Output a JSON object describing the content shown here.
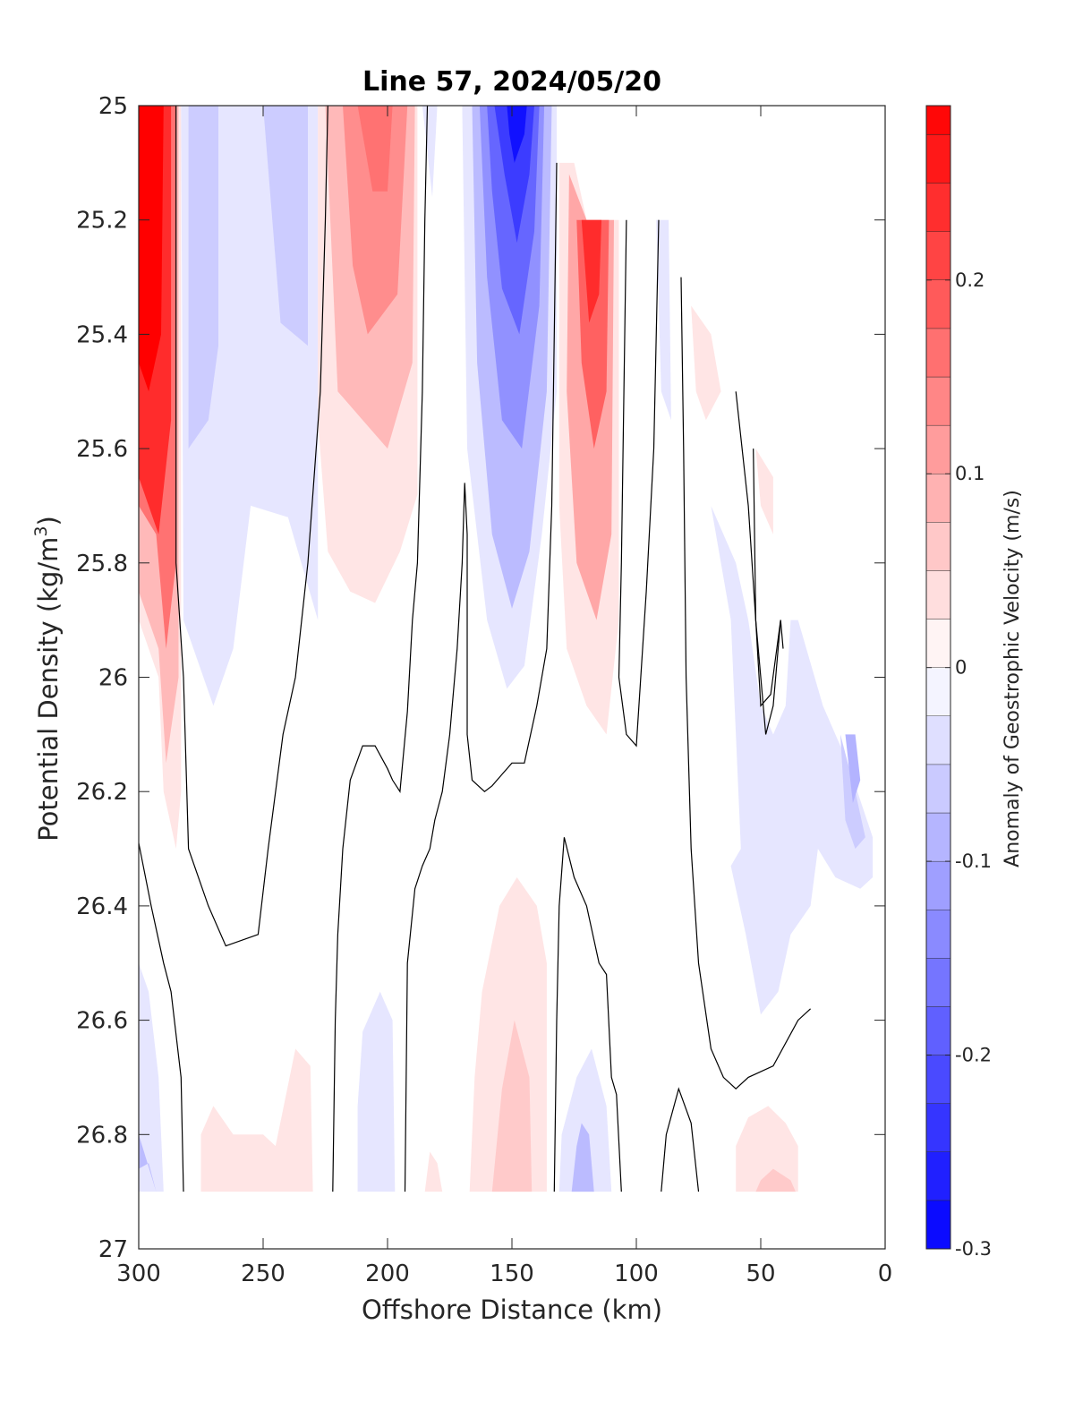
{
  "chart_data": {
    "type": "contourf",
    "title": "Line 57, 2024/05/20",
    "xlabel": "Offshore Distance (km)",
    "ylabel_main": "Potential Density (kg/m",
    "ylabel_sup": "3",
    "ylabel_close": ")",
    "colorbar_label": "Anomaly of Geostrophic Velocity (m/s)",
    "xlim": [
      300,
      0
    ],
    "ylim": [
      25,
      27
    ],
    "x_ticks": [
      "300",
      "250",
      "200",
      "150",
      "100",
      "50",
      "0"
    ],
    "x_tick_values": [
      300,
      250,
      200,
      150,
      100,
      50,
      0
    ],
    "y_ticks": [
      "25",
      "25.2",
      "25.4",
      "25.6",
      "25.8",
      "26",
      "26.2",
      "26.4",
      "26.6",
      "26.8",
      "27"
    ],
    "y_tick_values": [
      25,
      25.2,
      25.4,
      25.6,
      25.8,
      26,
      26.2,
      26.4,
      26.6,
      26.8,
      27
    ],
    "clim": [
      -0.3,
      0.29
    ],
    "colorbar_levels": [
      -0.3,
      -0.275,
      -0.25,
      -0.225,
      -0.2,
      -0.175,
      -0.15,
      -0.125,
      -0.1,
      -0.075,
      -0.05,
      -0.025,
      0,
      0.025,
      0.05,
      0.075,
      0.1,
      0.125,
      0.15,
      0.175,
      0.2,
      0.225,
      0.25,
      0.275,
      0.29
    ],
    "colorbar_ticks": [
      "0.2",
      "0.1",
      "0",
      "-0.1",
      "-0.2",
      "-0.3"
    ],
    "colorbar_tick_values": [
      0.2,
      0.1,
      0,
      -0.1,
      -0.2,
      -0.3
    ],
    "colormap": {
      "negative": "#0000ff",
      "zero": "#ffffff",
      "positive": "#ff0000"
    },
    "zero_contour_color": "#000000",
    "grid": false,
    "features": [
      {
        "name": "nearshore-jet-300km",
        "type": "positive",
        "x_range": [
          300,
          283
        ],
        "sigma_range": [
          25,
          26.3
        ],
        "peak_value": 0.29
      },
      {
        "name": "negative-band-280km",
        "type": "negative",
        "x_range": [
          283,
          228
        ],
        "sigma_range": [
          25,
          26.05
        ],
        "peak_value": -0.07
      },
      {
        "name": "positive-band-205km",
        "type": "positive",
        "x_range": [
          228,
          188
        ],
        "sigma_range": [
          25,
          25.87
        ],
        "peak_value": 0.16
      },
      {
        "name": "negative-core-150km",
        "type": "negative",
        "x_range": [
          170,
          130
        ],
        "sigma_range": [
          25,
          26.02
        ],
        "peak_value": -0.28
      },
      {
        "name": "positive-band-115km",
        "type": "positive",
        "x_range": [
          131,
          107
        ],
        "sigma_range": [
          25.2,
          26.1
        ],
        "peak_value": 0.24
      },
      {
        "name": "deep-positive-150km",
        "type": "positive",
        "x_range": [
          167,
          136
        ],
        "sigma_range": [
          26.35,
          26.9
        ],
        "peak_value": 0.06
      },
      {
        "name": "deep-negative-120km",
        "type": "negative",
        "x_range": [
          131,
          110
        ],
        "sigma_range": [
          26.63,
          26.9
        ],
        "peak_value": -0.09
      },
      {
        "name": "nearshore-negative-35km",
        "type": "negative",
        "x_range": [
          70,
          5
        ],
        "sigma_range": [
          25.7,
          26.6
        ],
        "peak_value": -0.09
      }
    ]
  }
}
